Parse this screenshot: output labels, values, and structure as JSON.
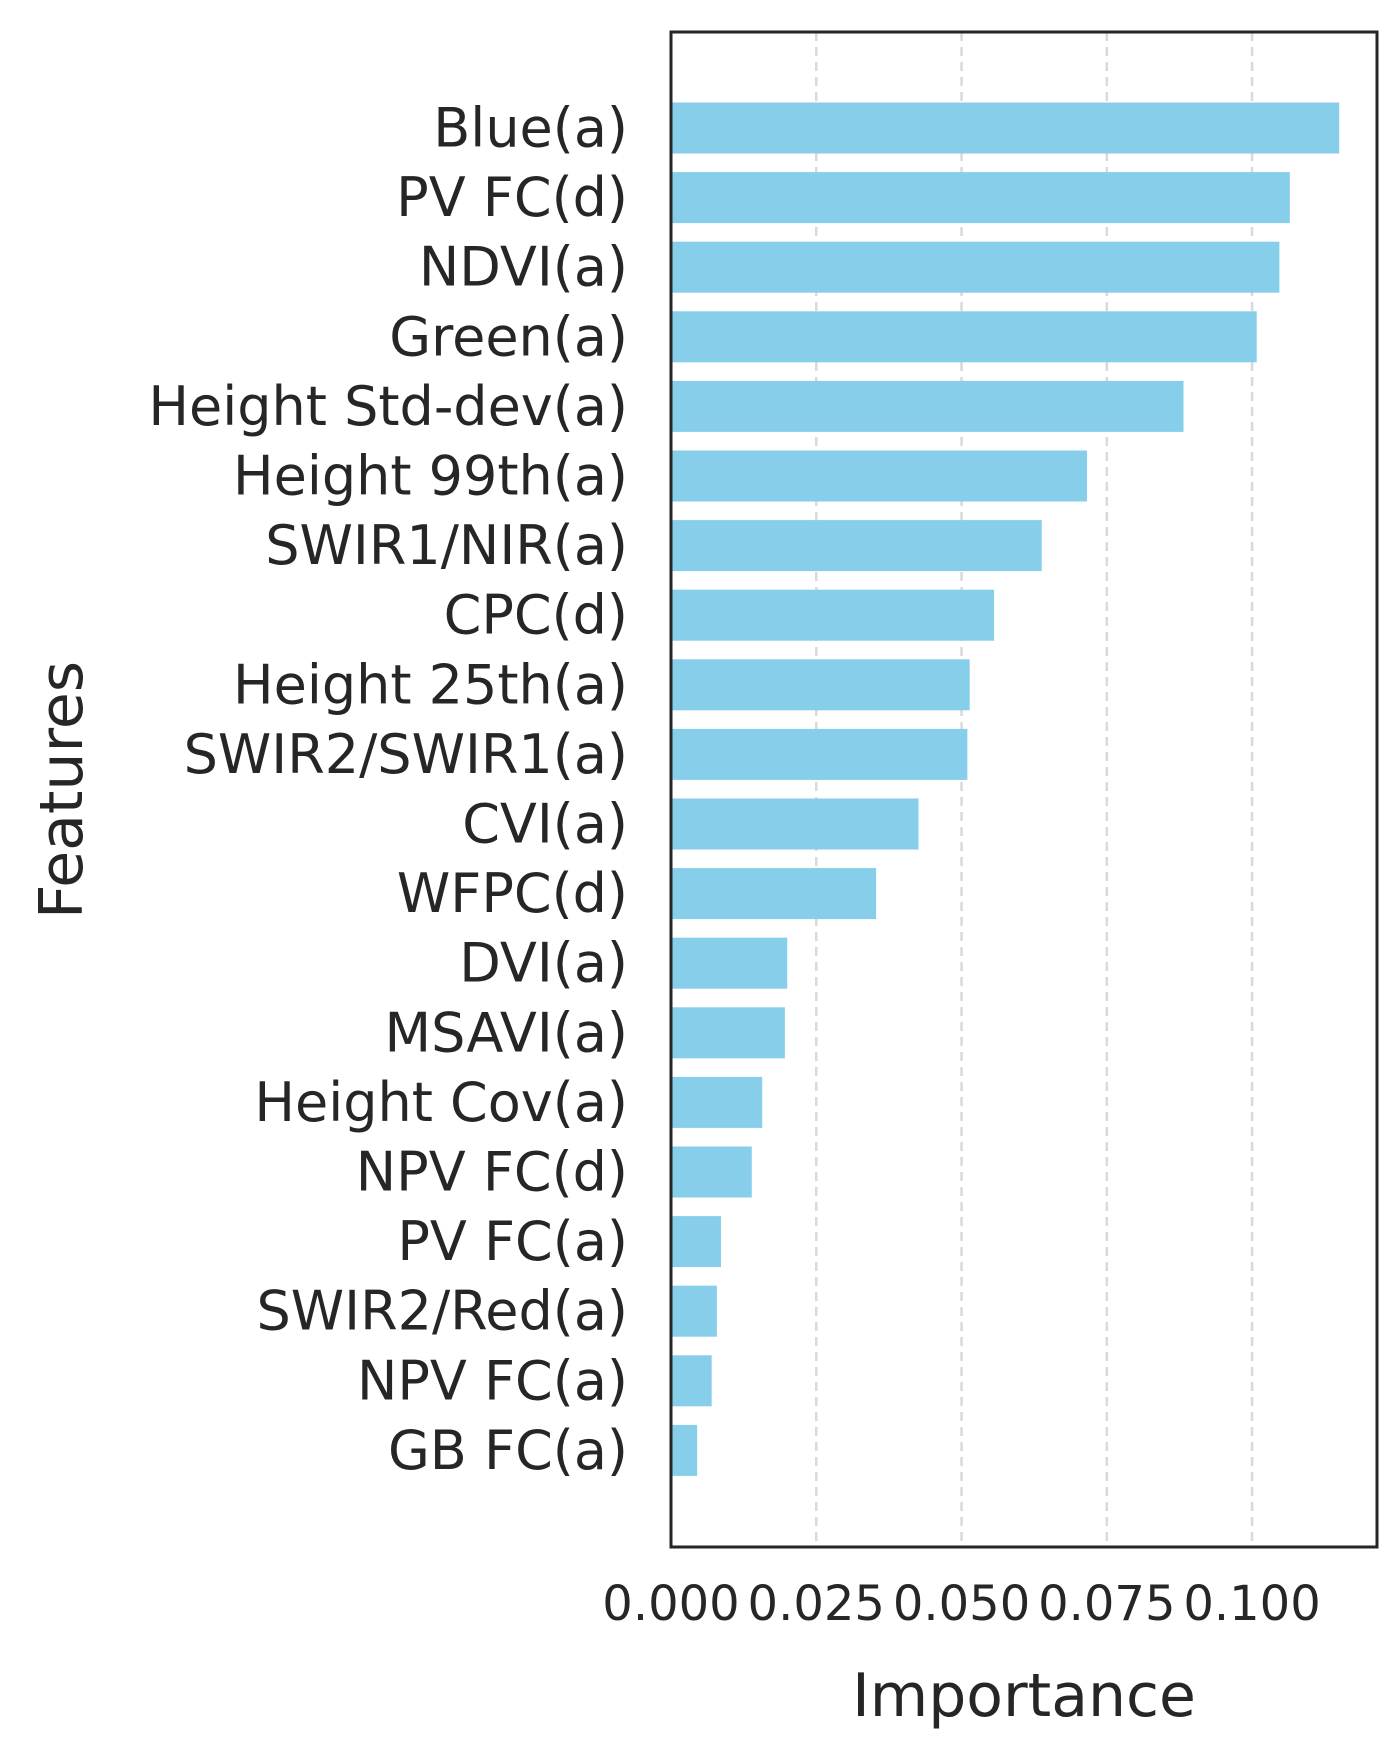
{
  "chart_data": {
    "type": "bar",
    "orientation": "horizontal",
    "xlabel": "Importance",
    "ylabel": "Features",
    "xlim": [
      0,
      0.1215
    ],
    "xticks": [
      {
        "value": 0.0,
        "label": "0.000"
      },
      {
        "value": 0.025,
        "label": "0.025"
      },
      {
        "value": 0.05,
        "label": "0.050"
      },
      {
        "value": 0.075,
        "label": "0.075"
      },
      {
        "value": 0.1,
        "label": "0.100"
      }
    ],
    "grid": "x-dashed",
    "bar_color": "#87CEEB",
    "categories": [
      "Blue(a)",
      "PV FC(d)",
      "NDVI(a)",
      "Green(a)",
      "Height Std-dev(a)",
      "Height 99th(a)",
      "SWIR1/NIR(a)",
      "CPC(d)",
      "Height 25th(a)",
      "SWIR2/SWIR1(a)",
      "CVI(a)",
      "WFPC(d)",
      "DVI(a)",
      "MSAVI(a)",
      "Height Cov(a)",
      "NPV FC(d)",
      "PV FC(a)",
      "SWIR2/Red(a)",
      "NPV FC(a)",
      "GB FC(a)"
    ],
    "values": [
      0.115,
      0.1065,
      0.1047,
      0.1008,
      0.0882,
      0.0716,
      0.0638,
      0.0556,
      0.0514,
      0.051,
      0.0426,
      0.0353,
      0.02,
      0.0196,
      0.0157,
      0.0139,
      0.0086,
      0.0079,
      0.007,
      0.0045
    ]
  }
}
